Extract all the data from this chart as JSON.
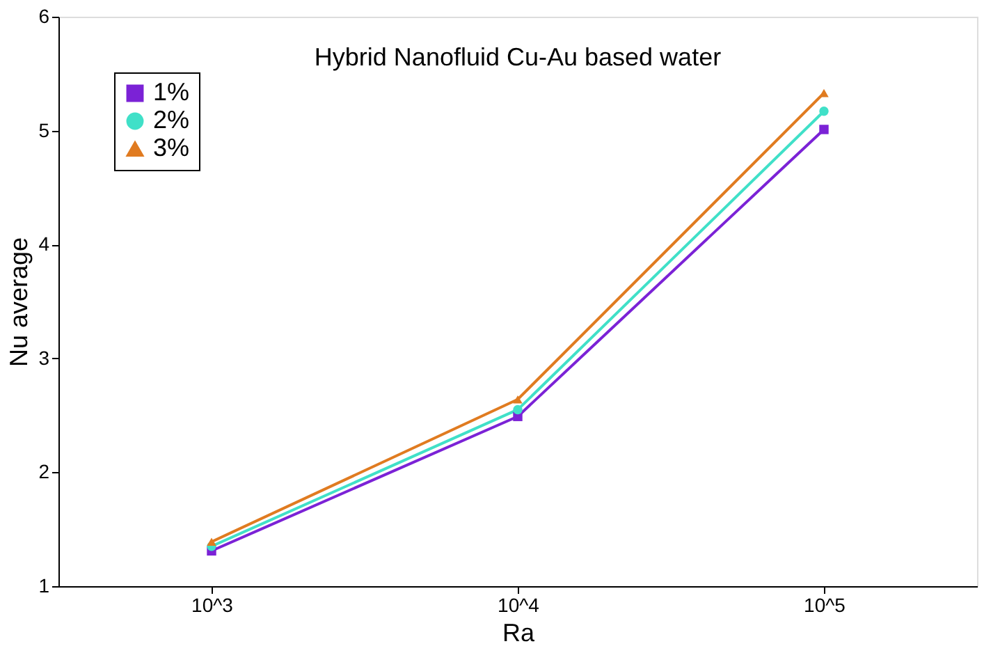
{
  "chart_data": {
    "type": "line",
    "title": "Hybrid Nanofluid Cu-Au based water",
    "xlabel": "Ra",
    "ylabel": "Nu average",
    "categories": [
      "10^3",
      "10^4",
      "10^5"
    ],
    "series": [
      {
        "name": "1%",
        "color": "#7b22d6",
        "marker": "square",
        "values": [
          1.31,
          2.49,
          5.01
        ]
      },
      {
        "name": "2%",
        "color": "#40e0c8",
        "marker": "circle",
        "values": [
          1.35,
          2.55,
          5.17
        ]
      },
      {
        "name": "3%",
        "color": "#e07b20",
        "marker": "triangle",
        "values": [
          1.39,
          2.64,
          5.33
        ]
      }
    ],
    "ylim": [
      1,
      6
    ],
    "yticks": [
      1,
      2,
      3,
      4,
      5,
      6
    ],
    "grid": false,
    "legend": "top left",
    "line_style": "solid"
  }
}
